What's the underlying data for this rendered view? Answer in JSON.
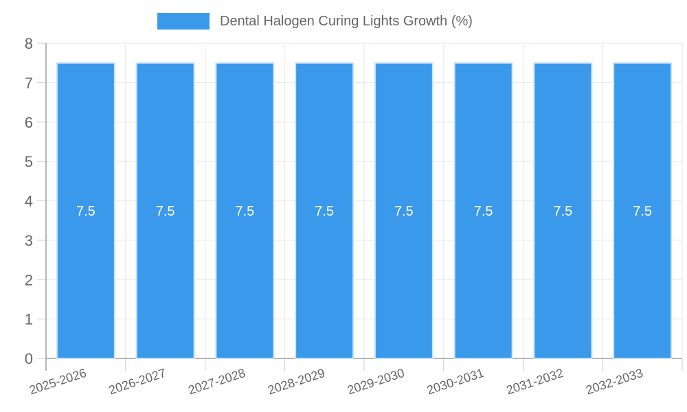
{
  "legend": {
    "items": [
      {
        "label": "Dental Halogen Curing Lights Growth (%)",
        "color": "#3B99EC"
      }
    ]
  },
  "chart_data": {
    "type": "bar",
    "title": "Dental Halogen Curing Lights Growth (%)",
    "categories": [
      "2025-2026",
      "2026-2027",
      "2027-2028",
      "2028-2029",
      "2029-2030",
      "2030-2031",
      "2031-2032",
      "2032-2033"
    ],
    "values": [
      7.5,
      7.5,
      7.5,
      7.5,
      7.5,
      7.5,
      7.5,
      7.5
    ],
    "value_labels": [
      "7.5",
      "7.5",
      "7.5",
      "7.5",
      "7.5",
      "7.5",
      "7.5",
      "7.5"
    ],
    "xlabel": "",
    "ylabel": "",
    "ylim": [
      0,
      8
    ],
    "yticks": [
      0,
      1,
      2,
      3,
      4,
      5,
      6,
      7,
      8
    ],
    "grid": true,
    "legend_position": "top",
    "colors": {
      "bar": "#3B99EC",
      "bar_border": "#C9E4FA",
      "value_label": "#FFFFFF",
      "axis_text": "#666666",
      "grid_line": "#E6E6E6",
      "tick_line": "#CCCCCC",
      "axis_line": "#9E9E9E"
    }
  }
}
